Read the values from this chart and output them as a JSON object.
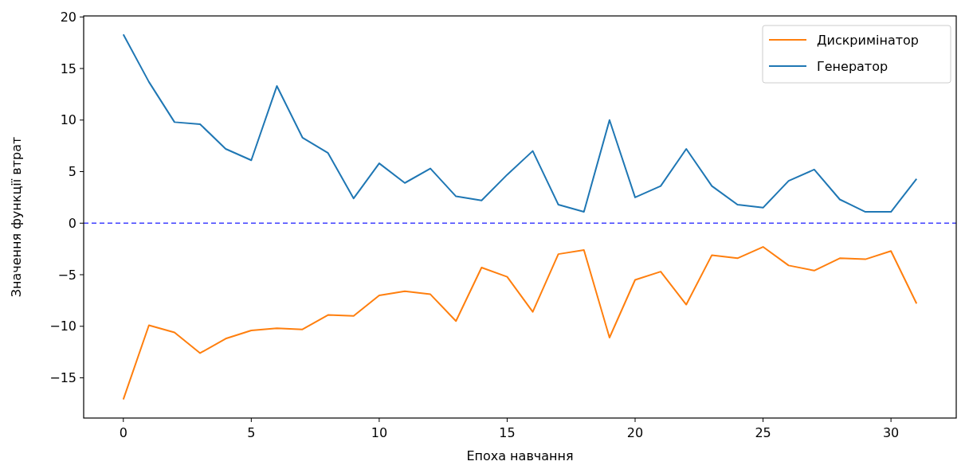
{
  "chart_data": {
    "type": "line",
    "xlabel": "Епоха навчання",
    "ylabel": "Значення функції втрат",
    "x": [
      0,
      1,
      2,
      3,
      4,
      5,
      6,
      7,
      8,
      9,
      10,
      11,
      12,
      13,
      14,
      15,
      16,
      17,
      18,
      19,
      20,
      21,
      22,
      23,
      24,
      25,
      26,
      27,
      28,
      29,
      30,
      31
    ],
    "series": [
      {
        "name": "Дискримінатор",
        "color": "#ff7f0e",
        "values": [
          -17.1,
          -9.9,
          -10.6,
          -12.6,
          -11.2,
          -10.4,
          -10.2,
          -10.3,
          -8.9,
          -9.0,
          -7.0,
          -6.6,
          -6.9,
          -9.5,
          -4.3,
          -5.2,
          -8.6,
          -3.0,
          -2.6,
          -11.1,
          -5.5,
          -4.7,
          -7.9,
          -3.1,
          -3.4,
          -2.3,
          -4.1,
          -4.6,
          -3.4,
          -3.5,
          -2.7,
          -7.8
        ]
      },
      {
        "name": "Генератор",
        "color": "#1f77b4",
        "values": [
          18.3,
          13.7,
          9.8,
          9.6,
          7.2,
          6.1,
          13.3,
          8.3,
          6.8,
          2.4,
          5.8,
          3.9,
          5.3,
          2.6,
          2.2,
          4.7,
          7.0,
          1.8,
          1.1,
          10.0,
          2.5,
          3.6,
          7.2,
          3.6,
          1.8,
          1.5,
          4.1,
          5.2,
          2.3,
          1.1,
          1.1,
          4.3
        ]
      }
    ],
    "xlim": [
      -1.55,
      32.55
    ],
    "xticks": [
      0,
      5,
      10,
      15,
      20,
      25,
      30
    ],
    "ylim": [
      -18.9,
      20.1
    ],
    "yticks": [
      -15,
      -10,
      -5,
      0,
      5,
      10,
      15,
      20
    ],
    "ref_lines": [
      {
        "axis": "y",
        "value": 0,
        "color": "#4040ff",
        "line_style": "dashed"
      }
    ],
    "legend": "top right",
    "grid": false
  }
}
